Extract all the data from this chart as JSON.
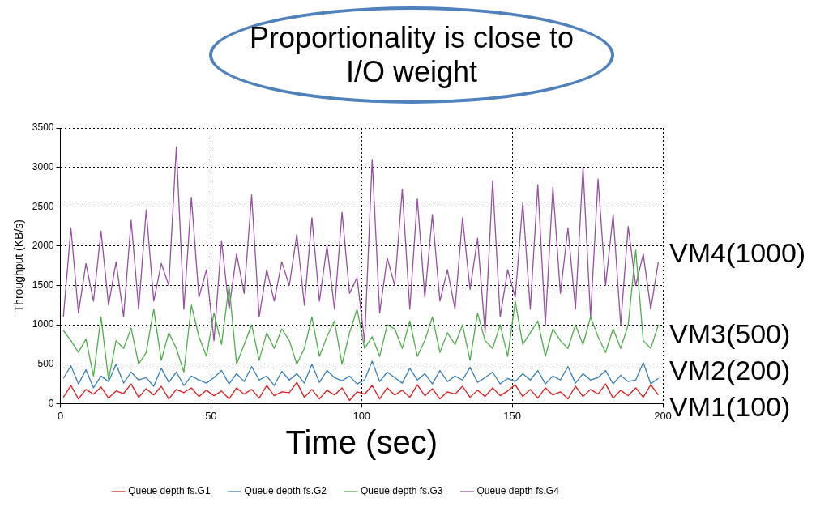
{
  "chart_data": {
    "type": "line",
    "xlabel": "Time (sec)",
    "ylabel": "Throughput (KB/s)",
    "annotations": [
      "Proportionality is close to I/O weight",
      "VM4(1000)",
      "VM3(500)",
      "VM2(200)",
      "VM1(100)"
    ],
    "x": [
      1,
      3.5,
      6,
      8.5,
      11,
      13.5,
      16,
      18.5,
      21,
      23.5,
      26,
      28.5,
      31,
      33.5,
      36,
      38.5,
      41,
      43.5,
      46,
      48.5,
      51,
      53.5,
      56,
      58.5,
      61,
      63.5,
      66,
      68.5,
      71,
      73.5,
      76,
      78.5,
      81,
      83.5,
      86,
      88.5,
      91,
      93.5,
      96,
      98.5,
      101,
      103.5,
      106,
      108.5,
      111,
      113.5,
      116,
      118.5,
      121,
      123.5,
      126,
      128.5,
      131,
      133.5,
      136,
      138.5,
      141,
      143.5,
      146,
      148.5,
      151,
      153.5,
      156,
      158.5,
      161,
      163.5,
      166,
      168.5,
      171,
      173.5,
      176,
      178.5,
      181,
      183.5,
      186,
      188.5,
      191,
      193.5,
      196,
      198.5
    ],
    "series": [
      {
        "name": "Queue depth fs.G1",
        "color": "#e41a1c",
        "values": [
          80,
          230,
          60,
          180,
          120,
          210,
          70,
          160,
          130,
          250,
          80,
          190,
          110,
          220,
          60,
          180,
          140,
          200,
          90,
          170,
          100,
          160,
          60,
          200,
          120,
          180,
          70,
          230,
          100,
          150,
          140,
          270,
          80,
          180,
          60,
          170,
          110,
          200,
          40,
          150,
          120,
          230,
          60,
          200,
          110,
          170,
          80,
          240,
          100,
          190,
          60,
          150,
          120,
          220,
          80,
          170,
          90,
          200,
          100,
          160,
          240,
          90,
          180,
          70,
          200,
          110,
          150,
          60,
          220,
          90,
          180,
          120,
          250,
          70,
          170,
          100,
          200,
          80,
          240,
          110
        ]
      },
      {
        "name": "Queue depth fs.G2",
        "color": "#377eb8",
        "values": [
          320,
          480,
          250,
          430,
          200,
          350,
          280,
          500,
          260,
          400,
          300,
          330,
          220,
          450,
          270,
          400,
          230,
          350,
          300,
          260,
          330,
          420,
          250,
          380,
          280,
          470,
          300,
          350,
          230,
          410,
          300,
          380,
          260,
          500,
          270,
          420,
          330,
          290,
          350,
          250,
          300,
          540,
          280,
          400,
          330,
          260,
          450,
          300,
          380,
          250,
          420,
          280,
          350,
          300,
          460,
          270,
          330,
          400,
          250,
          320,
          280,
          380,
          300,
          420,
          250,
          350,
          300,
          470,
          260,
          380,
          300,
          330,
          420,
          250,
          360,
          280,
          300,
          520,
          250,
          320
        ]
      },
      {
        "name": "Queue depth fs.G3",
        "color": "#4daf4a",
        "values": [
          930,
          800,
          650,
          820,
          350,
          1100,
          300,
          800,
          700,
          960,
          500,
          650,
          1200,
          550,
          900,
          700,
          400,
          1250,
          850,
          600,
          1150,
          750,
          1500,
          500,
          750,
          1000,
          550,
          900,
          700,
          950,
          800,
          500,
          700,
          1100,
          600,
          850,
          1050,
          500,
          900,
          1200,
          700,
          850,
          600,
          1000,
          950,
          700,
          1050,
          600,
          800,
          1100,
          650,
          900,
          750,
          1000,
          550,
          1150,
          800,
          700,
          1000,
          600,
          1300,
          750,
          900,
          1050,
          600,
          950,
          800,
          700,
          1000,
          750,
          1100,
          850,
          650,
          950,
          700,
          1000,
          1950,
          800,
          700,
          1000
        ]
      },
      {
        "name": "Queue depth fs.G4",
        "color": "#984ea3",
        "values": [
          1100,
          2230,
          1150,
          1780,
          1300,
          2190,
          1250,
          1800,
          1100,
          2330,
          1200,
          2460,
          1300,
          1780,
          1500,
          3260,
          1200,
          2620,
          1350,
          1700,
          800,
          2070,
          1200,
          1900,
          1400,
          2650,
          1100,
          1700,
          1300,
          1800,
          1500,
          2150,
          1250,
          2360,
          1300,
          2000,
          1200,
          2430,
          1400,
          1600,
          780,
          3100,
          1150,
          1850,
          1500,
          2720,
          1200,
          2600,
          1350,
          2400,
          1300,
          1700,
          1200,
          2360,
          1450,
          2100,
          900,
          2830,
          1100,
          1700,
          1350,
          2550,
          1200,
          2780,
          1000,
          2750,
          1400,
          2230,
          1200,
          3000,
          1100,
          2850,
          1500,
          2400,
          1000,
          2250,
          1500,
          1900,
          1200,
          1800
        ]
      }
    ],
    "xlim": [
      0,
      200
    ],
    "xticks": [
      0,
      50,
      100,
      150,
      200
    ],
    "ylim": [
      0,
      3500
    ],
    "yticks": [
      0,
      500,
      1000,
      1500,
      2000,
      2500,
      3000,
      3500
    ],
    "grid": true,
    "legend": "bottom",
    "marker": "none",
    "line_style": "solid"
  }
}
